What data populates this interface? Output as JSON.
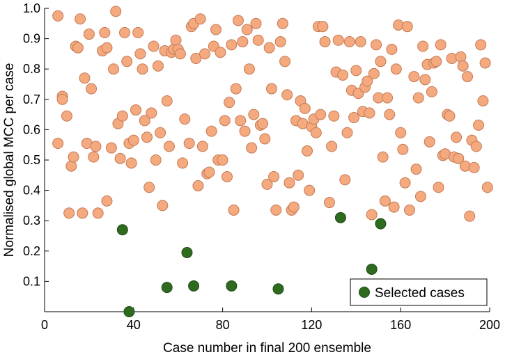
{
  "chart_data": {
    "type": "scatter",
    "title": "",
    "xlabel": "Case number in final 200 ensemble",
    "ylabel": "Normalised global MCC per case",
    "xlim": [
      0,
      200
    ],
    "ylim": [
      0,
      1.0
    ],
    "xticks": [
      "0",
      "40",
      "80",
      "120",
      "160",
      "200"
    ],
    "xtick_values": [
      0,
      40,
      80,
      120,
      160,
      200
    ],
    "yticks": [
      "0.1",
      "0.2",
      "0.3",
      "0.4",
      "0.5",
      "0.6",
      "0.7",
      "0.8",
      "0.9",
      "1.0"
    ],
    "ytick_values": [
      0.1,
      0.2,
      0.3,
      0.4,
      0.5,
      0.6,
      0.7,
      0.8,
      0.9,
      1.0
    ],
    "grid": false,
    "legend_position": "bottom-right",
    "colors": {
      "ensemble": "#f4a97f",
      "ensemble_edge": "#c47a55",
      "selected": "#2e6b1f",
      "selected_edge": "#1f4a14"
    },
    "legend": {
      "label": "Selected cases"
    },
    "series": [
      {
        "key": "ensemble",
        "values": [
          [
            6,
            0.975
          ],
          [
            6,
            0.555
          ],
          [
            8,
            0.71
          ],
          [
            8,
            0.7
          ],
          [
            10,
            0.645
          ],
          [
            11,
            0.325
          ],
          [
            12,
            0.48
          ],
          [
            13,
            0.51
          ],
          [
            14,
            0.875
          ],
          [
            15,
            0.87
          ],
          [
            16,
            0.965
          ],
          [
            17,
            0.325
          ],
          [
            18,
            0.77
          ],
          [
            19,
            0.555
          ],
          [
            20,
            0.915
          ],
          [
            21,
            0.735
          ],
          [
            22,
            0.51
          ],
          [
            23,
            0.545
          ],
          [
            24,
            0.325
          ],
          [
            26,
            0.86
          ],
          [
            27,
            0.92
          ],
          [
            28,
            0.87
          ],
          [
            28,
            0.365
          ],
          [
            30,
            0.54
          ],
          [
            31,
            0.8
          ],
          [
            32,
            0.99
          ],
          [
            33,
            0.62
          ],
          [
            34,
            0.505
          ],
          [
            35,
            0.645
          ],
          [
            36,
            0.92
          ],
          [
            37,
            0.825
          ],
          [
            38,
            0.555
          ],
          [
            39,
            0.49
          ],
          [
            40,
            0.565
          ],
          [
            41,
            0.665
          ],
          [
            42,
            0.92
          ],
          [
            43,
            0.85
          ],
          [
            44,
            0.8
          ],
          [
            45,
            0.63
          ],
          [
            46,
            0.575
          ],
          [
            47,
            0.41
          ],
          [
            48,
            0.655
          ],
          [
            49,
            0.875
          ],
          [
            50,
            0.5
          ],
          [
            51,
            0.81
          ],
          [
            52,
            0.59
          ],
          [
            53,
            0.35
          ],
          [
            54,
            0.86
          ],
          [
            55,
            0.695
          ],
          [
            56,
            0.545
          ],
          [
            57,
            0.855
          ],
          [
            58,
            0.865
          ],
          [
            59,
            0.895
          ],
          [
            60,
            0.865
          ],
          [
            61,
            0.85
          ],
          [
            62,
            0.49
          ],
          [
            63,
            0.635
          ],
          [
            65,
            0.555
          ],
          [
            66,
            0.94
          ],
          [
            67,
            0.95
          ],
          [
            68,
            0.835
          ],
          [
            69,
            0.415
          ],
          [
            70,
            0.965
          ],
          [
            71,
            0.545
          ],
          [
            72,
            0.85
          ],
          [
            73,
            0.455
          ],
          [
            74,
            0.46
          ],
          [
            75,
            0.595
          ],
          [
            76,
            0.875
          ],
          [
            77,
            0.93
          ],
          [
            78,
            0.5
          ],
          [
            79,
            0.855
          ],
          [
            80,
            0.5
          ],
          [
            81,
            0.63
          ],
          [
            82,
            0.445
          ],
          [
            83,
            0.69
          ],
          [
            84,
            0.88
          ],
          [
            85,
            0.335
          ],
          [
            86,
            0.735
          ],
          [
            87,
            0.96
          ],
          [
            88,
            0.63
          ],
          [
            89,
            0.89
          ],
          [
            90,
            0.595
          ],
          [
            91,
            0.93
          ],
          [
            92,
            0.8
          ],
          [
            93,
            0.54
          ],
          [
            94,
            0.65
          ],
          [
            95,
            0.95
          ],
          [
            96,
            0.895
          ],
          [
            97,
            0.615
          ],
          [
            98,
            0.62
          ],
          [
            99,
            0.57
          ],
          [
            100,
            0.42
          ],
          [
            101,
            0.87
          ],
          [
            102,
            0.735
          ],
          [
            103,
            0.445
          ],
          [
            104,
            0.335
          ],
          [
            106,
            0.89
          ],
          [
            107,
            0.95
          ],
          [
            108,
            0.825
          ],
          [
            109,
            0.715
          ],
          [
            110,
            0.425
          ],
          [
            111,
            0.335
          ],
          [
            112,
            0.345
          ],
          [
            113,
            0.63
          ],
          [
            114,
            0.45
          ],
          [
            115,
            0.695
          ],
          [
            116,
            0.62
          ],
          [
            117,
            0.67
          ],
          [
            118,
            0.53
          ],
          [
            119,
            0.4
          ],
          [
            120,
            0.61
          ],
          [
            121,
            0.635
          ],
          [
            122,
            0.59
          ],
          [
            123,
            0.94
          ],
          [
            124,
            0.65
          ],
          [
            125,
            0.94
          ],
          [
            126,
            0.89
          ],
          [
            128,
            0.36
          ],
          [
            129,
            0.545
          ],
          [
            130,
            0.645
          ],
          [
            131,
            0.79
          ],
          [
            132,
            0.895
          ],
          [
            134,
            0.78
          ],
          [
            135,
            0.435
          ],
          [
            136,
            0.59
          ],
          [
            137,
            0.89
          ],
          [
            138,
            0.73
          ],
          [
            139,
            0.64
          ],
          [
            140,
            0.795
          ],
          [
            141,
            0.72
          ],
          [
            142,
            0.89
          ],
          [
            143,
            0.66
          ],
          [
            144,
            0.74
          ],
          [
            145,
            0.76
          ],
          [
            146,
            0.655
          ],
          [
            147,
            0.32
          ],
          [
            148,
            0.785
          ],
          [
            149,
            0.88
          ],
          [
            150,
            0.705
          ],
          [
            151,
            0.825
          ],
          [
            152,
            0.51
          ],
          [
            153,
            0.365
          ],
          [
            154,
            0.705
          ],
          [
            155,
            0.65
          ],
          [
            156,
            0.865
          ],
          [
            157,
            0.345
          ],
          [
            158,
            0.8
          ],
          [
            159,
            0.945
          ],
          [
            160,
            0.59
          ],
          [
            161,
            0.535
          ],
          [
            162,
            0.425
          ],
          [
            163,
            0.94
          ],
          [
            164,
            0.335
          ],
          [
            166,
            0.775
          ],
          [
            167,
            0.47
          ],
          [
            168,
            0.705
          ],
          [
            169,
            0.38
          ],
          [
            170,
            0.875
          ],
          [
            171,
            0.765
          ],
          [
            172,
            0.815
          ],
          [
            173,
            0.56
          ],
          [
            174,
            0.725
          ],
          [
            175,
            0.82
          ],
          [
            176,
            0.825
          ],
          [
            177,
            0.41
          ],
          [
            178,
            0.88
          ],
          [
            179,
            0.515
          ],
          [
            180,
            0.52
          ],
          [
            181,
            0.65
          ],
          [
            182,
            0.645
          ],
          [
            183,
            0.835
          ],
          [
            184,
            0.51
          ],
          [
            185,
            0.575
          ],
          [
            186,
            0.505
          ],
          [
            187,
            0.84
          ],
          [
            188,
            0.81
          ],
          [
            189,
            0.48
          ],
          [
            190,
            0.775
          ],
          [
            191,
            0.315
          ],
          [
            192,
            0.565
          ],
          [
            193,
            0.475
          ],
          [
            194,
            0.545
          ],
          [
            195,
            0.615
          ],
          [
            196,
            0.88
          ],
          [
            197,
            0.695
          ],
          [
            198,
            0.82
          ],
          [
            199,
            0.41
          ]
        ]
      },
      {
        "key": "selected",
        "name": "Selected cases",
        "values": [
          [
            35,
            0.27
          ],
          [
            38,
            0.0
          ],
          [
            55,
            0.08
          ],
          [
            64,
            0.195
          ],
          [
            67,
            0.085
          ],
          [
            84,
            0.085
          ],
          [
            105,
            0.075
          ],
          [
            133,
            0.31
          ],
          [
            147,
            0.14
          ],
          [
            151,
            0.29
          ]
        ]
      }
    ]
  }
}
